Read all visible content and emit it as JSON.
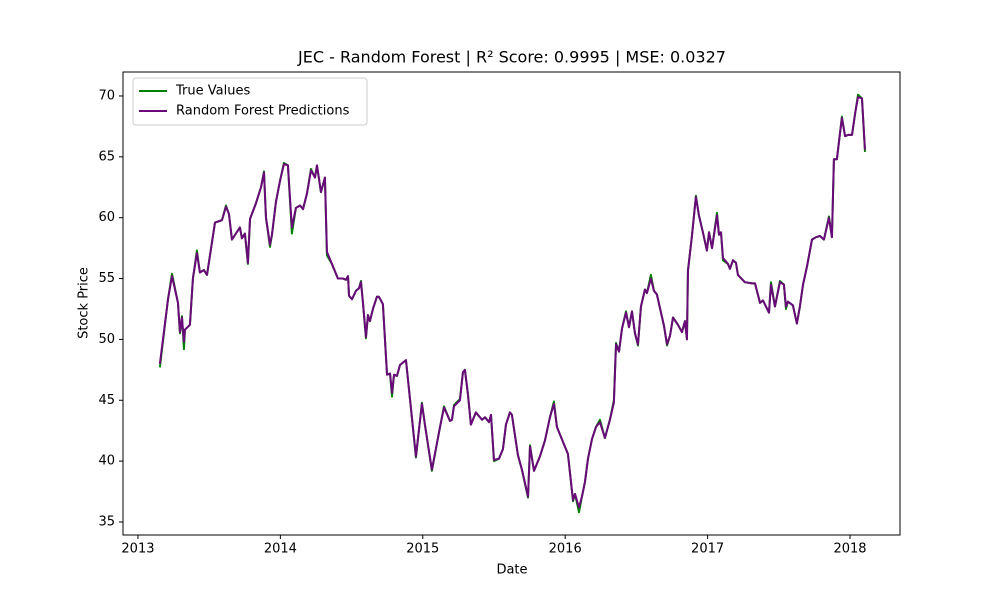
{
  "chart_data": {
    "type": "line",
    "title": "JEC - Random Forest | R² Score: 0.9995 | MSE: 0.0327",
    "x_label": "Date",
    "y_label": "Stock Price",
    "x": [
      2013.154,
      2013.211,
      2013.239,
      2013.281,
      2013.295,
      2013.309,
      2013.323,
      2013.33,
      2013.365,
      2013.386,
      2013.414,
      2013.435,
      2013.463,
      2013.485,
      2013.52,
      2013.541,
      2013.59,
      2013.618,
      2013.639,
      2013.66,
      2013.688,
      2013.716,
      2013.73,
      2013.751,
      2013.772,
      2013.787,
      2013.829,
      2013.864,
      2013.885,
      2013.899,
      2013.927,
      2013.941,
      2013.969,
      2013.997,
      2014.025,
      2014.053,
      2014.081,
      2014.109,
      2014.138,
      2014.159,
      2014.187,
      2014.215,
      2014.243,
      2014.257,
      2014.285,
      2014.313,
      2014.327,
      2014.362,
      2014.404,
      2014.44,
      2014.461,
      2014.475,
      2014.482,
      2014.503,
      2014.531,
      2014.552,
      2014.566,
      2014.58,
      2014.601,
      2014.615,
      2014.629,
      2014.65,
      2014.678,
      2014.692,
      2014.72,
      2014.749,
      2014.77,
      2014.784,
      2014.798,
      2014.819,
      2014.84,
      2014.882,
      2014.952,
      2014.994,
      2015.015,
      2015.064,
      2015.121,
      2015.149,
      2015.191,
      2015.205,
      2015.219,
      2015.261,
      2015.282,
      2015.296,
      2015.317,
      2015.338,
      2015.373,
      2015.416,
      2015.437,
      2015.465,
      2015.479,
      2015.5,
      2015.535,
      2015.563,
      2015.584,
      2015.612,
      2015.626,
      2015.668,
      2015.696,
      2015.739,
      2015.753,
      2015.781,
      2015.823,
      2015.858,
      2015.893,
      2015.921,
      2015.942,
      2015.977,
      2016.019,
      2016.055,
      2016.069,
      2016.097,
      2016.118,
      2016.139,
      2016.16,
      2016.188,
      2016.216,
      2016.244,
      2016.279,
      2016.314,
      2016.342,
      2016.357,
      2016.378,
      2016.399,
      2016.427,
      2016.448,
      2016.469,
      2016.49,
      2016.511,
      2016.532,
      2016.56,
      2016.574,
      2016.602,
      2016.623,
      2016.644,
      2016.665,
      2016.694,
      2016.715,
      2016.736,
      2016.757,
      2016.792,
      2016.82,
      2016.841,
      2016.855,
      2016.862,
      2016.89,
      2016.918,
      2016.939,
      2016.967,
      2016.995,
      2017.01,
      2017.031,
      2017.066,
      2017.08,
      2017.094,
      2017.108,
      2017.143,
      2017.157,
      2017.178,
      2017.199,
      2017.213,
      2017.262,
      2017.312,
      2017.333,
      2017.368,
      2017.389,
      2017.41,
      2017.431,
      2017.445,
      2017.473,
      2017.508,
      2017.536,
      2017.55,
      2017.564,
      2017.599,
      2017.627,
      2017.648,
      2017.67,
      2017.698,
      2017.733,
      2017.761,
      2017.789,
      2017.817,
      2017.852,
      2017.873,
      2017.887,
      2017.908,
      2017.922,
      2017.943,
      2017.965,
      2017.986,
      2018.014,
      2018.035,
      2018.056,
      2018.084,
      2018.105
    ],
    "series": [
      {
        "name": "True Values",
        "color": "#008000",
        "values": [
          47.7,
          53.3,
          55.4,
          53,
          50.5,
          51.9,
          49.2,
          50.8,
          51.2,
          55,
          57.3,
          55.5,
          55.7,
          55.3,
          58,
          59.6,
          59.8,
          61,
          60.3,
          58.2,
          58.7,
          59.2,
          58.3,
          58.7,
          56.2,
          59.9,
          61.2,
          62.5,
          63.8,
          60,
          57.6,
          58.6,
          61.3,
          63,
          64.5,
          64.3,
          58.7,
          60.8,
          61,
          60.7,
          62,
          64,
          63.3,
          64.3,
          62.1,
          63.3,
          56.9,
          56.2,
          55,
          55,
          54.9,
          55.2,
          53.6,
          53.3,
          54,
          54.2,
          54.8,
          53,
          50.1,
          52,
          51.5,
          52.5,
          53.5,
          53.5,
          52.9,
          47.1,
          47.2,
          45.3,
          47.1,
          47,
          47.9,
          48.3,
          40.3,
          44.8,
          43,
          39.2,
          42.8,
          44.5,
          43.3,
          43.4,
          44.6,
          45.1,
          47.3,
          47.5,
          45.5,
          43,
          44,
          43.4,
          43.6,
          43.2,
          43.8,
          40,
          40.2,
          41,
          43,
          44,
          43.8,
          40.5,
          39.3,
          37,
          41.3,
          39.2,
          40.4,
          41.7,
          43.6,
          44.9,
          42.8,
          41.8,
          40.6,
          36.7,
          37.3,
          35.8,
          37.1,
          38.3,
          40.2,
          41.8,
          42.8,
          43.4,
          41.9,
          43.4,
          45,
          49.7,
          49,
          50.9,
          52.3,
          51,
          52.3,
          50.5,
          49.5,
          52.7,
          54.1,
          53.8,
          55.3,
          54,
          53.7,
          52.6,
          51.1,
          49.5,
          50.3,
          51.8,
          51.2,
          50.6,
          51.5,
          50,
          55.7,
          58.5,
          61.8,
          60.2,
          58.8,
          57.3,
          58.8,
          57.5,
          60.4,
          58.6,
          58.8,
          56.5,
          56.2,
          55.8,
          56.5,
          56.3,
          55.3,
          54.7,
          54.6,
          54.6,
          53,
          53.2,
          52.7,
          52.2,
          54.7,
          52.7,
          54.8,
          54.5,
          52.5,
          53.1,
          52.8,
          51.3,
          52.7,
          54.5,
          56,
          58.2,
          58.4,
          58.5,
          58.2,
          60.1,
          58.4,
          64.8,
          64.8,
          66.2,
          68.3,
          66.7,
          66.8,
          66.8,
          68.5,
          70.1,
          69.8,
          65.4
        ]
      },
      {
        "name": "Random Forest Predictions",
        "color": "#6a0a7a",
        "values": [
          48,
          53.3,
          55.2,
          53,
          50.6,
          51.8,
          49.8,
          50.8,
          51.2,
          55,
          57.1,
          55.5,
          55.7,
          55.3,
          58,
          59.6,
          59.8,
          60.9,
          60.3,
          58.2,
          58.7,
          59.2,
          58.3,
          58.7,
          56.3,
          59.9,
          61.2,
          62.5,
          63.7,
          60,
          57.8,
          58.6,
          61.3,
          63,
          64.4,
          64.3,
          59.2,
          60.8,
          61,
          60.7,
          62,
          63.9,
          63.3,
          64.3,
          62.1,
          63.3,
          57.2,
          56.2,
          55,
          55,
          54.9,
          55.2,
          53.6,
          53.3,
          54,
          54.2,
          54.7,
          53,
          50.2,
          52,
          51.5,
          52.5,
          53.5,
          53.5,
          52.9,
          47.1,
          47.2,
          45.6,
          47.1,
          47,
          47.9,
          48.3,
          40.4,
          44.7,
          43,
          39.3,
          42.8,
          44.4,
          43.3,
          43.4,
          44.5,
          45,
          47.3,
          47.5,
          45.5,
          43,
          44,
          43.4,
          43.6,
          43.2,
          43.8,
          40.1,
          40.2,
          41,
          43,
          44,
          43.8,
          40.5,
          39.3,
          37.1,
          41.2,
          39.2,
          40.4,
          41.7,
          43.6,
          44.7,
          42.8,
          41.8,
          40.6,
          36.8,
          37.3,
          36.2,
          37.1,
          38.3,
          40.2,
          41.8,
          42.8,
          43.2,
          41.9,
          43.4,
          44.8,
          49.6,
          49,
          50.9,
          52.2,
          51,
          52.3,
          50.5,
          49.6,
          52.7,
          54.1,
          53.8,
          55,
          54,
          53.7,
          52.6,
          51.1,
          49.6,
          50.3,
          51.8,
          51.2,
          50.6,
          51.5,
          50,
          55.6,
          58.5,
          61.7,
          60.2,
          58.8,
          57.3,
          58.8,
          57.5,
          60.2,
          58.6,
          58.8,
          56.7,
          56.2,
          55.8,
          56.5,
          56.3,
          55.3,
          54.7,
          54.6,
          54.6,
          53,
          53.2,
          52.7,
          52.2,
          54.5,
          52.7,
          54.7,
          54.5,
          52.7,
          53.1,
          52.8,
          51.3,
          52.7,
          54.5,
          56,
          58.2,
          58.4,
          58.5,
          58.2,
          60,
          58.4,
          64.8,
          64.8,
          66.2,
          68.2,
          66.7,
          66.8,
          66.8,
          68.5,
          69.9,
          69.8,
          65.6
        ]
      }
    ],
    "xlim": [
      2012.895,
      2018.351
    ],
    "xticks": [
      2013,
      2014,
      2015,
      2016,
      2017,
      2018
    ],
    "ylim": [
      33.93,
      71.97
    ],
    "yticks": [
      35,
      40,
      45,
      50,
      55,
      60,
      65,
      70
    ],
    "grid": false,
    "legend": "upper left"
  }
}
